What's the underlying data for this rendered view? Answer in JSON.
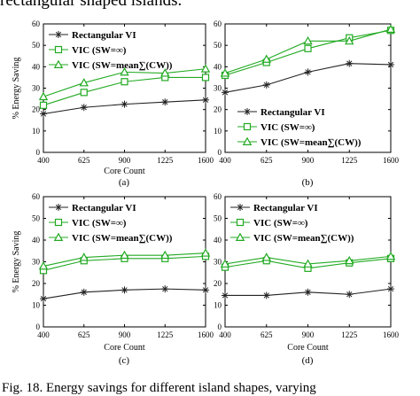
{
  "header_text": "rectangular shaped islands.",
  "footer_text": "Fig. 18. Energy savings for different island shapes, varying",
  "colors": {
    "axis": "#000000",
    "rect_vi": "#222222",
    "vic_inf": "#22aa22",
    "vic_mean": "#22aa22"
  },
  "chart_data": [
    {
      "type": "line",
      "panel_label": "(a)",
      "xlabel": "Core Count",
      "ylabel": "% Energy Saving",
      "categories": [
        "400",
        "625",
        "900",
        "1225",
        "1600"
      ],
      "ylim": [
        0,
        60
      ],
      "yticks": [
        "0",
        "10",
        "20",
        "30",
        "40",
        "50",
        "60"
      ],
      "legend_position": "top-left",
      "series": [
        {
          "name": "Rectangular VI",
          "marker": "star",
          "values": [
            18,
            21,
            22.5,
            23.5,
            24.5
          ]
        },
        {
          "name": "VIC (SW=∞)",
          "marker": "square",
          "values": [
            22,
            28,
            33,
            35,
            35
          ]
        },
        {
          "name": "VIC (SW=mean∑(CW))",
          "marker": "triangle",
          "values": [
            26,
            32.5,
            37.5,
            37,
            39
          ]
        }
      ]
    },
    {
      "type": "line",
      "panel_label": "(b)",
      "xlabel": "",
      "ylabel": "",
      "categories": [
        "400",
        "625",
        "900",
        "1225",
        "1600"
      ],
      "ylim": [
        0,
        60
      ],
      "yticks": [
        "0",
        "10",
        "20",
        "30",
        "40",
        "50",
        "60"
      ],
      "legend_position": "bottom-left",
      "series": [
        {
          "name": "Rectangular VI",
          "marker": "star",
          "values": [
            28,
            31.5,
            37.5,
            41.5,
            41
          ]
        },
        {
          "name": "VIC (SW=∞)",
          "marker": "square",
          "values": [
            36,
            42,
            48.5,
            53.5,
            57
          ]
        },
        {
          "name": "VIC (SW=mean∑(CW))",
          "marker": "triangle",
          "values": [
            37,
            43.5,
            52,
            52,
            57.5
          ]
        }
      ]
    },
    {
      "type": "line",
      "panel_label": "(c)",
      "xlabel": "Core Count",
      "ylabel": "% Energy Saving",
      "categories": [
        "400",
        "625",
        "900",
        "1225",
        "1600"
      ],
      "ylim": [
        0,
        60
      ],
      "yticks": [
        "0",
        "10",
        "20",
        "30",
        "40",
        "50",
        "60"
      ],
      "legend_position": "top-left",
      "series": [
        {
          "name": "Rectangular VI",
          "marker": "star",
          "values": [
            13,
            16,
            17,
            17.5,
            17
          ]
        },
        {
          "name": "VIC (SW=∞)",
          "marker": "square",
          "values": [
            26,
            30.5,
            31.5,
            31.5,
            32.5
          ]
        },
        {
          "name": "VIC (SW=mean∑(CW))",
          "marker": "triangle",
          "values": [
            28,
            32,
            33,
            33,
            34
          ]
        }
      ]
    },
    {
      "type": "line",
      "panel_label": "(d)",
      "xlabel": "Core Count",
      "ylabel": "",
      "categories": [
        "400",
        "625",
        "900",
        "1225",
        "1600"
      ],
      "ylim": [
        0,
        60
      ],
      "yticks": [
        "0",
        "10",
        "20",
        "30",
        "40",
        "50",
        "60"
      ],
      "legend_position": "top-left",
      "series": [
        {
          "name": "Rectangular VI",
          "marker": "star",
          "values": [
            14.5,
            14.5,
            16,
            15,
            17.5
          ]
        },
        {
          "name": "VIC (SW=∞)",
          "marker": "square",
          "values": [
            27.5,
            30.5,
            27,
            29.5,
            31.5
          ]
        },
        {
          "name": "VIC (SW=mean∑(CW))",
          "marker": "triangle",
          "values": [
            29,
            32,
            29,
            30.5,
            32.5
          ]
        }
      ]
    }
  ]
}
